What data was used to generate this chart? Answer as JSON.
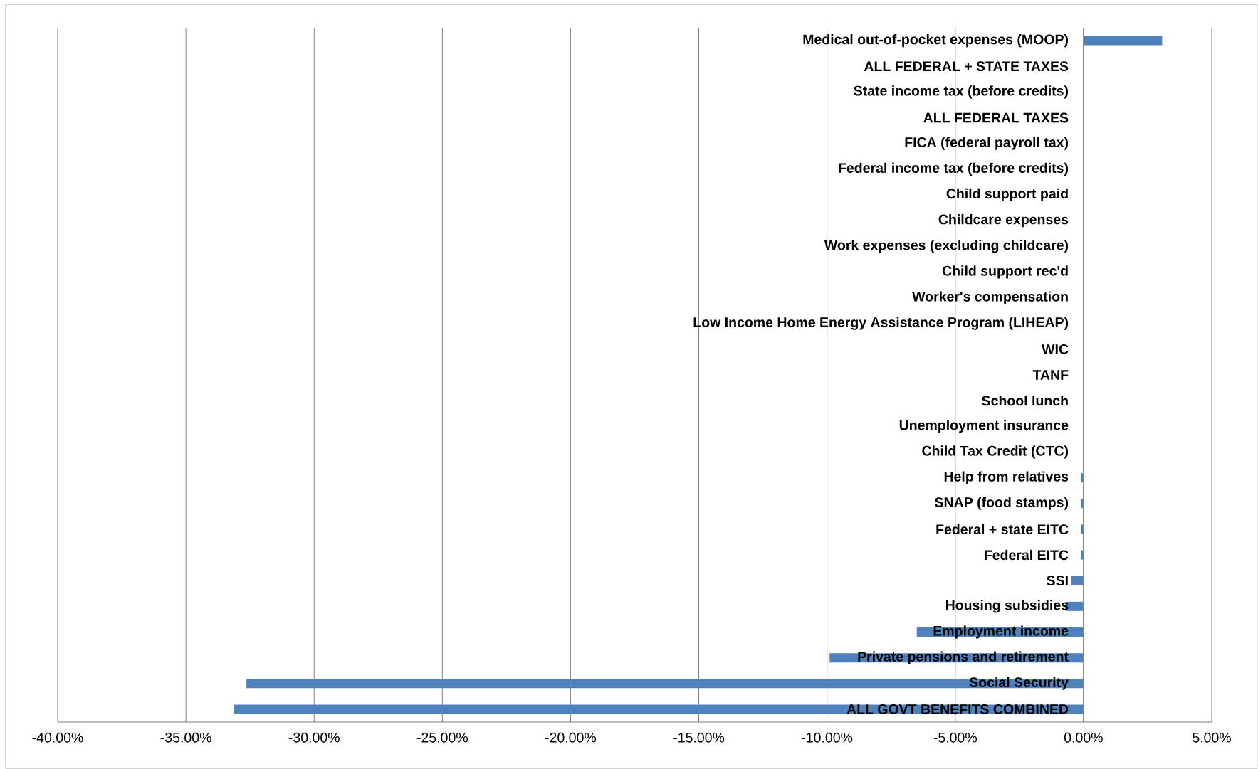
{
  "chart_data": {
    "type": "bar",
    "orientation": "horizontal",
    "categories": [
      "Medical out-of-pocket expenses (MOOP)",
      "ALL FEDERAL + STATE TAXES",
      "State income tax (before credits)",
      "ALL FEDERAL TAXES",
      "FICA (federal payroll tax)",
      "Federal income tax (before credits)",
      "Child support paid",
      "Childcare expenses",
      "Work expenses (excluding childcare)",
      "Child support rec'd",
      "Worker's compensation",
      "Low Income Home Energy Assistance Program (LIHEAP)",
      "WIC",
      "TANF",
      "School lunch",
      "Unemployment insurance",
      "Child Tax Credit (CTC)",
      "Help from relatives",
      "SNAP (food stamps)",
      "Federal + state EITC",
      "Federal EITC",
      "SSI",
      "Housing subsidies",
      "Employment income",
      "Private pensions and retirement",
      "Social Security",
      "ALL GOVT BENEFITS COMBINED"
    ],
    "values": [
      3.07,
      0,
      0,
      0,
      0,
      0,
      0,
      0,
      0,
      0,
      0,
      0,
      0,
      0,
      0,
      0,
      0,
      -0.1,
      -0.1,
      -0.1,
      -0.1,
      -0.49,
      -0.7,
      -6.5,
      -9.9,
      -32.64,
      -33.13
    ],
    "color": "#4f81bd",
    "xlim": [
      -40,
      5
    ],
    "xticks": [
      {
        "value": -40,
        "label": "-40.00%"
      },
      {
        "value": -35,
        "label": "-35.00%"
      },
      {
        "value": -30,
        "label": "-30.00%"
      },
      {
        "value": -25,
        "label": "-25.00%"
      },
      {
        "value": -20,
        "label": "-20.00%"
      },
      {
        "value": -15,
        "label": "-15.00%"
      },
      {
        "value": -10,
        "label": "-10.00%"
      },
      {
        "value": -5,
        "label": "-5.00%"
      },
      {
        "value": 0,
        "label": "0.00%"
      },
      {
        "value": 5,
        "label": "5.00%"
      }
    ],
    "grid": "x"
  }
}
